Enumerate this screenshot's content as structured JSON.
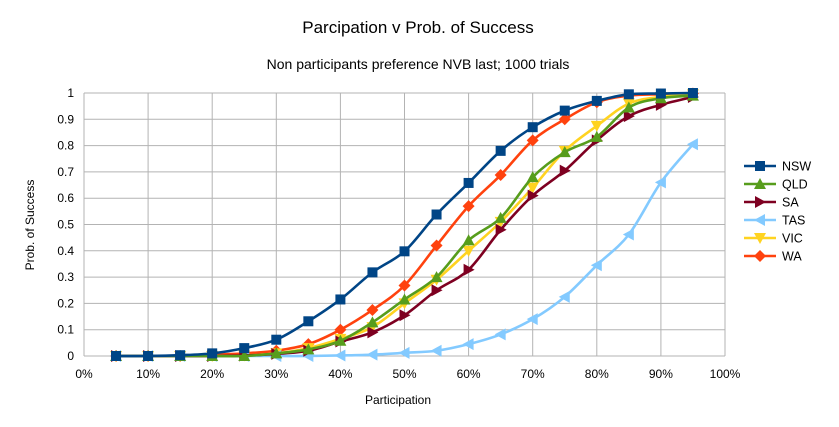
{
  "chart_data": {
    "type": "line",
    "title": "Parcipation v Prob. of Success",
    "subtitle": "Non participants preference NVB last; 1000 trials",
    "xlabel": "Participation",
    "ylabel": "Prob. of Success",
    "xlim": [
      0,
      100
    ],
    "ylim": [
      0,
      1
    ],
    "xticks": [
      "0%",
      "10%",
      "20%",
      "30%",
      "40%",
      "50%",
      "60%",
      "70%",
      "80%",
      "90%",
      "100%"
    ],
    "yticks": [
      "0",
      "0.1",
      "0.2",
      "0.3",
      "0.4",
      "0.5",
      "0.6",
      "0.7",
      "0.8",
      "0.9",
      "1"
    ],
    "grid": true,
    "legend_position": "right",
    "x": [
      5,
      10,
      15,
      20,
      25,
      30,
      35,
      40,
      45,
      50,
      55,
      60,
      65,
      70,
      75,
      80,
      85,
      90,
      95
    ],
    "series": [
      {
        "name": "NSW",
        "color": "#004586",
        "marker": "square",
        "values": [
          0,
          0,
          0.003,
          0.01,
          0.03,
          0.062,
          0.132,
          0.215,
          0.318,
          0.398,
          0.538,
          0.658,
          0.78,
          0.87,
          0.933,
          0.97,
          0.995,
          0.998,
          1.0
        ]
      },
      {
        "name": "QLD",
        "color": "#579d1c",
        "marker": "triangle-up",
        "values": [
          0,
          0,
          0,
          0,
          0,
          0.01,
          0.025,
          0.058,
          0.128,
          0.215,
          0.3,
          0.44,
          0.525,
          0.68,
          0.775,
          0.833,
          0.945,
          0.98,
          0.99
        ]
      },
      {
        "name": "SA",
        "color": "#7e0021",
        "marker": "triangle-right",
        "values": [
          0,
          0,
          0,
          0,
          0.002,
          0.008,
          0.02,
          0.055,
          0.09,
          0.155,
          0.25,
          0.328,
          0.48,
          0.61,
          0.705,
          0.82,
          0.912,
          0.955,
          0.985
        ]
      },
      {
        "name": "TAS",
        "color": "#83caff",
        "marker": "triangle-left",
        "values": [
          0,
          0,
          0,
          0,
          0,
          0,
          0,
          0.002,
          0.005,
          0.012,
          0.02,
          0.045,
          0.082,
          0.14,
          0.225,
          0.345,
          0.462,
          0.66,
          0.805
        ]
      },
      {
        "name": "VIC",
        "color": "#ffd320",
        "marker": "triangle-down",
        "values": [
          0,
          0,
          0,
          0,
          0.002,
          0.01,
          0.03,
          0.065,
          0.11,
          0.2,
          0.29,
          0.4,
          0.51,
          0.64,
          0.78,
          0.875,
          0.96,
          0.985,
          0.995
        ]
      },
      {
        "name": "WA",
        "color": "#ff420e",
        "marker": "diamond",
        "values": [
          0,
          0,
          0,
          0.005,
          0.01,
          0.02,
          0.045,
          0.1,
          0.175,
          0.268,
          0.42,
          0.57,
          0.688,
          0.82,
          0.9,
          0.965,
          0.99,
          0.995,
          0.998
        ]
      }
    ]
  }
}
